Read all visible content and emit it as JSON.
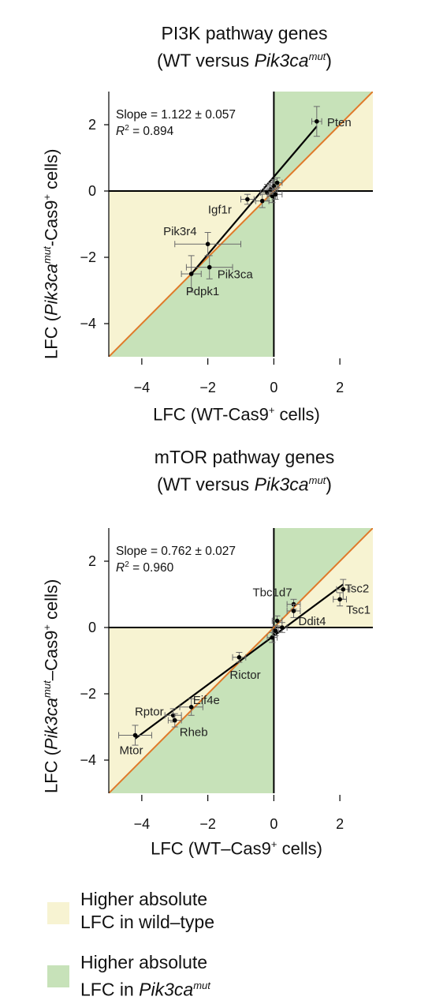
{
  "colors": {
    "wt_region": "#f7f3d2",
    "mut_region": "#c7e2b9",
    "identity_line": "#e07a2a",
    "fit_line": "#000000"
  },
  "chart_data": [
    {
      "type": "scatter",
      "title_line1": "PI3K pathway genes",
      "title_line2_prefix": "(WT versus ",
      "title_line2_italic": "Pik3ca",
      "title_line2_sup": "mut",
      "title_line2_suffix": ")",
      "xlabel_main": "LFC (WT-Cas9",
      "xlabel_sup": "+",
      "xlabel_tail": " cells)",
      "ylabel_prefix": "LFC (",
      "ylabel_italic": "Pik3ca",
      "ylabel_sup": "mut",
      "ylabel_mid": "-Cas9",
      "ylabel_sup2": "+",
      "ylabel_tail": " cells)",
      "slope_text": "Slope = 1.122 ± 0.057",
      "r2_label": "R",
      "r2_sup": "2",
      "r2_value": " = 0.894",
      "xlim": [
        -5,
        3
      ],
      "ylim": [
        -5,
        3
      ],
      "xticks": [
        -4,
        -2,
        0,
        2
      ],
      "yticks": [
        -4,
        -2,
        0,
        2
      ],
      "xtick_labels": [
        "−4",
        "−2",
        "0",
        "2"
      ],
      "ytick_labels": [
        "−4",
        "−2",
        "0",
        "2"
      ],
      "fit_line": {
        "x": [
          -2.5,
          1.3
        ],
        "y": [
          -2.5,
          1.95
        ]
      },
      "points": [
        {
          "label": "Pten",
          "x": 1.3,
          "y": 2.1,
          "xerr": 0.15,
          "yerr": 0.45
        },
        {
          "label": "Igf1r",
          "x": -0.8,
          "y": -0.25,
          "xerr": 0.2,
          "yerr": 0.15
        },
        {
          "label": "Pik3r4",
          "x": -2.0,
          "y": -1.6,
          "xerr": 1.0,
          "yerr": 0.35
        },
        {
          "label": "Pik3ca",
          "x": -1.95,
          "y": -2.3,
          "xerr": 0.7,
          "yerr": 0.35
        },
        {
          "label": "Pdpk1",
          "x": -2.5,
          "y": -2.5,
          "xerr": 0.3,
          "yerr": 0.55
        },
        {
          "label": "",
          "x": -0.35,
          "y": -0.3,
          "xerr": 0.2,
          "yerr": 0.2
        },
        {
          "label": "",
          "x": -0.2,
          "y": -0.05,
          "xerr": 0.2,
          "yerr": 0.25
        },
        {
          "label": "",
          "x": -0.1,
          "y": 0.05,
          "xerr": 0.2,
          "yerr": 0.2
        },
        {
          "label": "",
          "x": 0.0,
          "y": 0.15,
          "xerr": 0.15,
          "yerr": 0.2
        },
        {
          "label": "",
          "x": 0.1,
          "y": 0.25,
          "xerr": 0.15,
          "yerr": 0.15
        },
        {
          "label": "",
          "x": -0.05,
          "y": -0.15,
          "xerr": 0.15,
          "yerr": 0.2
        },
        {
          "label": "",
          "x": 0.05,
          "y": -0.1,
          "xerr": 0.2,
          "yerr": 0.15
        }
      ]
    },
    {
      "type": "scatter",
      "title_line1": "mTOR pathway genes",
      "title_line2_prefix": "(WT versus ",
      "title_line2_italic": "Pik3ca",
      "title_line2_sup": "mut",
      "title_line2_suffix": ")",
      "xlabel_main": "LFC (WT–Cas9",
      "xlabel_sup": "+",
      "xlabel_tail": " cells)",
      "ylabel_prefix": "LFC (",
      "ylabel_italic": "Pik3ca",
      "ylabel_sup": "mut",
      "ylabel_mid": "–Cas9",
      "ylabel_sup2": "+",
      "ylabel_tail": " cells)",
      "slope_text": "Slope = 0.762 ± 0.027",
      "r2_label": "R",
      "r2_sup": "2",
      "r2_value": " = 0.960",
      "xlim": [
        -5,
        3
      ],
      "ylim": [
        -5,
        3
      ],
      "xticks": [
        -4,
        -2,
        0,
        2
      ],
      "yticks": [
        -4,
        -2,
        0,
        2
      ],
      "xtick_labels": [
        "−4",
        "−2",
        "0",
        "2"
      ],
      "ytick_labels": [
        "−4",
        "−2",
        "0",
        "2"
      ],
      "fit_line": {
        "x": [
          -4.2,
          2.1
        ],
        "y": [
          -3.35,
          1.3
        ]
      },
      "points": [
        {
          "label": "Tsc2",
          "x": 2.1,
          "y": 1.15,
          "xerr": 0.2,
          "yerr": 0.3
        },
        {
          "label": "Tsc1",
          "x": 2.0,
          "y": 0.85,
          "xerr": 0.2,
          "yerr": 0.2
        },
        {
          "label": "Tbc1d7",
          "x": 0.6,
          "y": 0.7,
          "xerr": 0.2,
          "yerr": 0.15
        },
        {
          "label": "Ddit4",
          "x": 0.6,
          "y": 0.5,
          "xerr": 0.2,
          "yerr": 0.2
        },
        {
          "label": "Rictor",
          "x": -1.05,
          "y": -0.9,
          "xerr": 0.2,
          "yerr": 0.15
        },
        {
          "label": "Eif4e",
          "x": -2.5,
          "y": -2.4,
          "xerr": 0.35,
          "yerr": 0.25
        },
        {
          "label": "Rptor",
          "x": -3.05,
          "y": -2.65,
          "xerr": 0.25,
          "yerr": 0.2
        },
        {
          "label": "Rheb",
          "x": -3.0,
          "y": -2.8,
          "xerr": 0.2,
          "yerr": 0.2
        },
        {
          "label": "Mtor",
          "x": -4.2,
          "y": -3.25,
          "xerr": 0.5,
          "yerr": 0.3
        },
        {
          "label": "",
          "x": 0.1,
          "y": 0.2,
          "xerr": 0.15,
          "yerr": 0.15
        },
        {
          "label": "",
          "x": 0.25,
          "y": 0.0,
          "xerr": 0.15,
          "yerr": 0.15
        },
        {
          "label": "",
          "x": -0.05,
          "y": -0.3,
          "xerr": 0.15,
          "yerr": 0.15
        },
        {
          "label": "",
          "x": 0.05,
          "y": -0.1,
          "xerr": 0.1,
          "yerr": 0.15
        }
      ]
    }
  ],
  "legend": {
    "wt": {
      "line1": "Higher absolute",
      "line2": "LFC in wild–type"
    },
    "mut": {
      "line1": "Higher absolute",
      "line2_prefix": "LFC in ",
      "line2_italic": "Pik3ca",
      "line2_sup": "mut"
    }
  }
}
